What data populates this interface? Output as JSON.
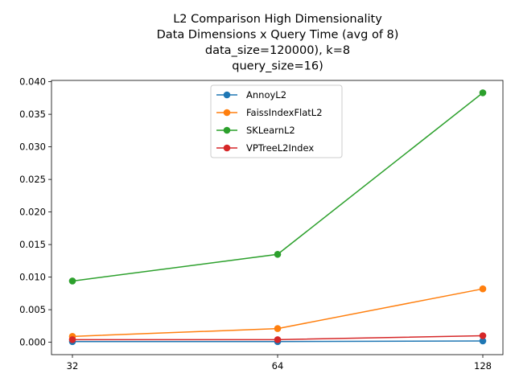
{
  "chart_data": {
    "type": "line",
    "title_lines": [
      "L2 Comparison High Dimensionality",
      "Data Dimensions x Query Time (avg of 8)",
      "data_size=120000), k=8",
      "query_size=16)"
    ],
    "x": [
      32,
      64,
      128
    ],
    "x_tick_labels": [
      "32",
      "64",
      "128"
    ],
    "ylim": [
      -0.0019,
      0.0402
    ],
    "y_ticks": [
      0.0,
      0.005,
      0.01,
      0.015,
      0.02,
      0.025,
      0.03,
      0.035,
      0.04
    ],
    "y_tick_labels": [
      "0.000",
      "0.005",
      "0.010",
      "0.015",
      "0.020",
      "0.025",
      "0.030",
      "0.035",
      "0.040"
    ],
    "legend_position": "upper center",
    "grid": false,
    "series": [
      {
        "name": "AnnoyL2",
        "color": "#1f77b4",
        "values": [
          0.0001,
          0.0001,
          0.0002
        ]
      },
      {
        "name": "FaissIndexFlatL2",
        "color": "#ff7f0e",
        "values": [
          0.0009,
          0.0021,
          0.0082
        ]
      },
      {
        "name": "SKLearnL2",
        "color": "#2ca02c",
        "values": [
          0.0094,
          0.0135,
          0.0383
        ]
      },
      {
        "name": "VPTreeL2Index",
        "color": "#d62728",
        "values": [
          0.0004,
          0.0004,
          0.001
        ]
      }
    ]
  }
}
